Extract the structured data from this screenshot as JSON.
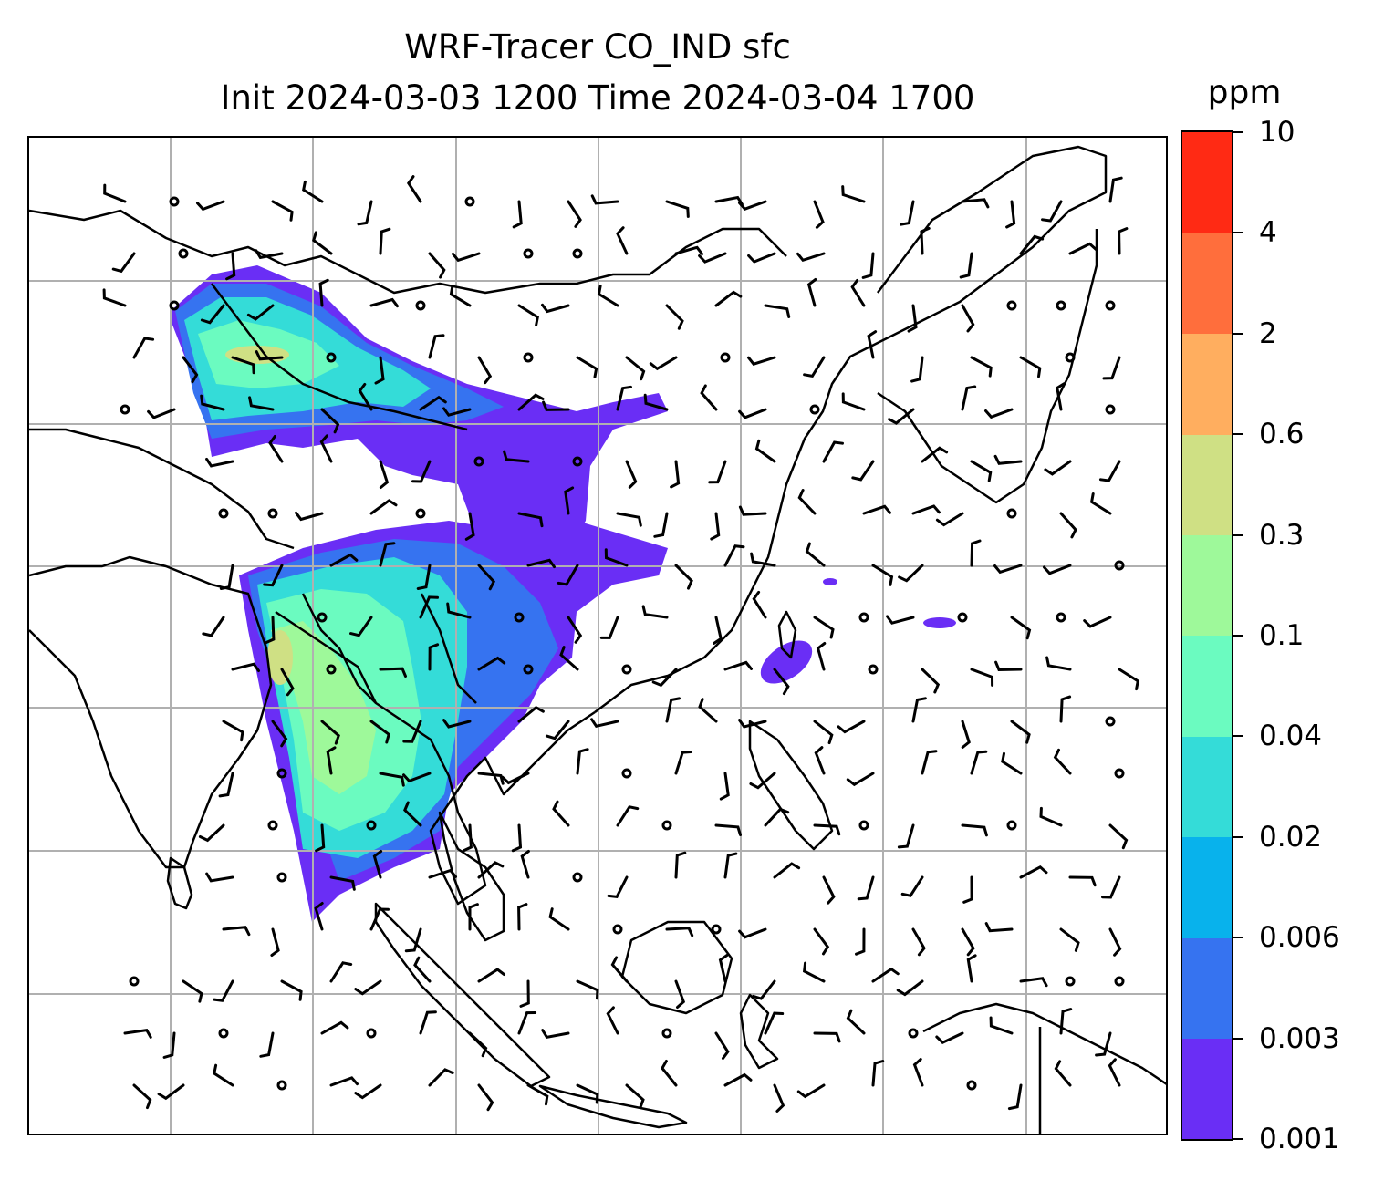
{
  "title": {
    "line1": "WRF-Tracer CO_IND sfc",
    "line2": "Init 2024-03-03 1200 Time 2024-03-04 1700"
  },
  "colorbar": {
    "unit": "ppm",
    "levels": [
      "0.001",
      "0.003",
      "0.006",
      "0.02",
      "0.04",
      "0.1",
      "0.3",
      "0.6",
      "2",
      "4",
      "10"
    ],
    "colors": [
      "#6a2ef5",
      "#3673f0",
      "#08b2ec",
      "#34dcd8",
      "#6bfbc0",
      "#9ef99a",
      "#cfe084",
      "#ffae5f",
      "#ff6e3c",
      "#ff2a14"
    ]
  },
  "map": {
    "gridline_color": "#b0b0b0",
    "coastline_color": "#000000",
    "feature": "surface CO tracer concentration with wind barbs"
  }
}
